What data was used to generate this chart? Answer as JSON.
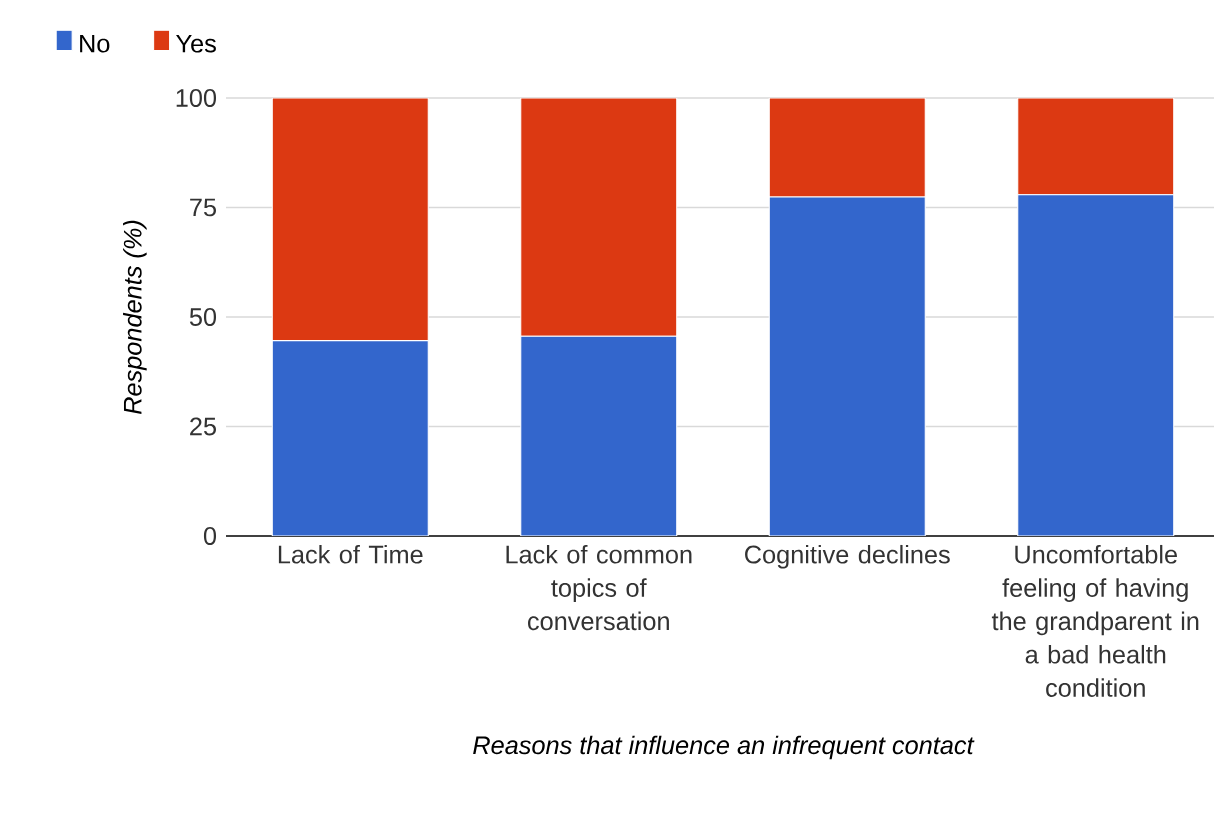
{
  "chart_data": {
    "type": "bar",
    "stacked": true,
    "xlabel": "Reasons that influence an infrequent contact",
    "ylabel": "Respondents (%)",
    "categories": [
      "Lack of Time",
      "Lack of common topics of conversation",
      "Cognitive declines",
      "Uncomfortable feeling of having the grandparent in a bad health condition"
    ],
    "series": [
      {
        "name": "No",
        "color": "#3366cc",
        "values": [
          44.6,
          45.6,
          77.4,
          77.9
        ]
      },
      {
        "name": "Yes",
        "color": "#dc3912",
        "values": [
          55.4,
          54.4,
          22.6,
          22.1
        ]
      }
    ],
    "ylim": [
      0,
      100
    ],
    "yticks": [
      0,
      25,
      50,
      75,
      100
    ],
    "grid": "y",
    "legend": "top left"
  }
}
